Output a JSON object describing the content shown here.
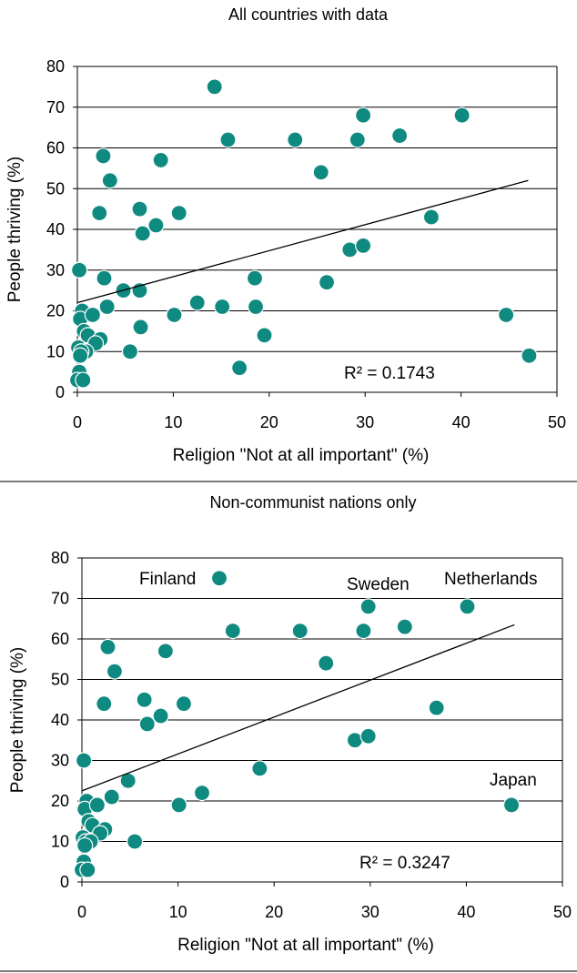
{
  "chart_data": [
    {
      "type": "scatter",
      "title": "All countries with data",
      "xlabel": "Religion \"Not at all important\" (%)",
      "ylabel": "People thriving (%)",
      "xlim": [
        0,
        50
      ],
      "ylim": [
        0,
        80
      ],
      "xticks": [
        0,
        10,
        20,
        30,
        40,
        50
      ],
      "yticks": [
        0,
        10,
        20,
        30,
        40,
        50,
        60,
        70,
        80
      ],
      "grid": "horizontal",
      "annotation": {
        "text": "R² = 0.1743",
        "r2": 0.1743
      },
      "trendline": {
        "x": [
          0,
          47
        ],
        "y": [
          22,
          52
        ]
      },
      "points": [
        {
          "x": 14.3,
          "y": 75
        },
        {
          "x": 15.7,
          "y": 62
        },
        {
          "x": 22.7,
          "y": 62
        },
        {
          "x": 29.2,
          "y": 62
        },
        {
          "x": 29.8,
          "y": 68
        },
        {
          "x": 40.1,
          "y": 68
        },
        {
          "x": 33.6,
          "y": 63
        },
        {
          "x": 25.4,
          "y": 54
        },
        {
          "x": 8.7,
          "y": 57
        },
        {
          "x": 2.7,
          "y": 58
        },
        {
          "x": 3.4,
          "y": 52
        },
        {
          "x": 2.3,
          "y": 44
        },
        {
          "x": 6.5,
          "y": 45
        },
        {
          "x": 10.6,
          "y": 44
        },
        {
          "x": 8.2,
          "y": 41
        },
        {
          "x": 6.8,
          "y": 39
        },
        {
          "x": 36.9,
          "y": 43
        },
        {
          "x": 28.4,
          "y": 35
        },
        {
          "x": 29.8,
          "y": 36
        },
        {
          "x": 0.2,
          "y": 30
        },
        {
          "x": 2.8,
          "y": 28
        },
        {
          "x": 18.5,
          "y": 28
        },
        {
          "x": 26.0,
          "y": 27
        },
        {
          "x": 4.8,
          "y": 25
        },
        {
          "x": 6.5,
          "y": 25
        },
        {
          "x": 3.1,
          "y": 21
        },
        {
          "x": 12.5,
          "y": 22
        },
        {
          "x": 15.1,
          "y": 21
        },
        {
          "x": 18.6,
          "y": 21
        },
        {
          "x": 10.1,
          "y": 19
        },
        {
          "x": 44.7,
          "y": 19
        },
        {
          "x": 0.5,
          "y": 20
        },
        {
          "x": 0.3,
          "y": 18
        },
        {
          "x": 1.6,
          "y": 19
        },
        {
          "x": 6.6,
          "y": 16
        },
        {
          "x": 0.7,
          "y": 15
        },
        {
          "x": 1.1,
          "y": 14
        },
        {
          "x": 19.5,
          "y": 14
        },
        {
          "x": 2.4,
          "y": 13
        },
        {
          "x": 1.9,
          "y": 12
        },
        {
          "x": 0.1,
          "y": 11
        },
        {
          "x": 0.9,
          "y": 10
        },
        {
          "x": 0.4,
          "y": 10
        },
        {
          "x": 5.5,
          "y": 10
        },
        {
          "x": 0.3,
          "y": 9
        },
        {
          "x": 47.1,
          "y": 9
        },
        {
          "x": 16.9,
          "y": 6
        },
        {
          "x": 0.2,
          "y": 5
        },
        {
          "x": 0.0,
          "y": 3
        },
        {
          "x": 0.6,
          "y": 3
        }
      ]
    },
    {
      "type": "scatter",
      "title": "Non-communist nations only",
      "xlabel": "Religion \"Not at all important\" (%)",
      "ylabel": "People thriving (%)",
      "xlim": [
        0,
        50
      ],
      "ylim": [
        0,
        80
      ],
      "xticks": [
        0,
        10,
        20,
        30,
        40,
        50
      ],
      "yticks": [
        0,
        10,
        20,
        30,
        40,
        50,
        60,
        70,
        80
      ],
      "grid": "horizontal",
      "annotation": {
        "text": "R² = 0.3247",
        "r2": 0.3247
      },
      "trendline": {
        "x": [
          0,
          45
        ],
        "y": [
          22.5,
          63.5
        ]
      },
      "labels": [
        {
          "text": "Finland",
          "x": 14.3,
          "y": 75
        },
        {
          "text": "Sweden",
          "x": 29.8,
          "y": 68
        },
        {
          "text": "Netherlands",
          "x": 40.1,
          "y": 68
        },
        {
          "text": "Japan",
          "x": 44.7,
          "y": 19
        }
      ],
      "points": [
        {
          "x": 14.3,
          "y": 75
        },
        {
          "x": 15.7,
          "y": 62
        },
        {
          "x": 22.7,
          "y": 62
        },
        {
          "x": 29.3,
          "y": 62
        },
        {
          "x": 29.8,
          "y": 68
        },
        {
          "x": 40.1,
          "y": 68
        },
        {
          "x": 33.6,
          "y": 63
        },
        {
          "x": 25.4,
          "y": 54
        },
        {
          "x": 8.7,
          "y": 57
        },
        {
          "x": 2.7,
          "y": 58
        },
        {
          "x": 3.4,
          "y": 52
        },
        {
          "x": 2.3,
          "y": 44
        },
        {
          "x": 6.5,
          "y": 45
        },
        {
          "x": 10.6,
          "y": 44
        },
        {
          "x": 8.2,
          "y": 41
        },
        {
          "x": 6.8,
          "y": 39
        },
        {
          "x": 36.9,
          "y": 43
        },
        {
          "x": 28.4,
          "y": 35
        },
        {
          "x": 29.8,
          "y": 36
        },
        {
          "x": 0.2,
          "y": 30
        },
        {
          "x": 18.5,
          "y": 28
        },
        {
          "x": 4.8,
          "y": 25
        },
        {
          "x": 3.1,
          "y": 21
        },
        {
          "x": 12.5,
          "y": 22
        },
        {
          "x": 10.1,
          "y": 19
        },
        {
          "x": 44.7,
          "y": 19
        },
        {
          "x": 0.5,
          "y": 20
        },
        {
          "x": 0.3,
          "y": 18
        },
        {
          "x": 1.6,
          "y": 19
        },
        {
          "x": 0.7,
          "y": 15
        },
        {
          "x": 1.1,
          "y": 14
        },
        {
          "x": 2.4,
          "y": 13
        },
        {
          "x": 1.9,
          "y": 12
        },
        {
          "x": 0.1,
          "y": 11
        },
        {
          "x": 0.4,
          "y": 10
        },
        {
          "x": 0.9,
          "y": 10
        },
        {
          "x": 5.5,
          "y": 10
        },
        {
          "x": 0.3,
          "y": 9
        },
        {
          "x": 0.2,
          "y": 5
        },
        {
          "x": 0.0,
          "y": 3
        },
        {
          "x": 0.6,
          "y": 3
        }
      ]
    }
  ],
  "colors": {
    "marker": "#0f8a80",
    "marker_outline": "#ffffff",
    "grid": "#000000",
    "trendline": "#000000",
    "divider": "#7a7a7a"
  }
}
